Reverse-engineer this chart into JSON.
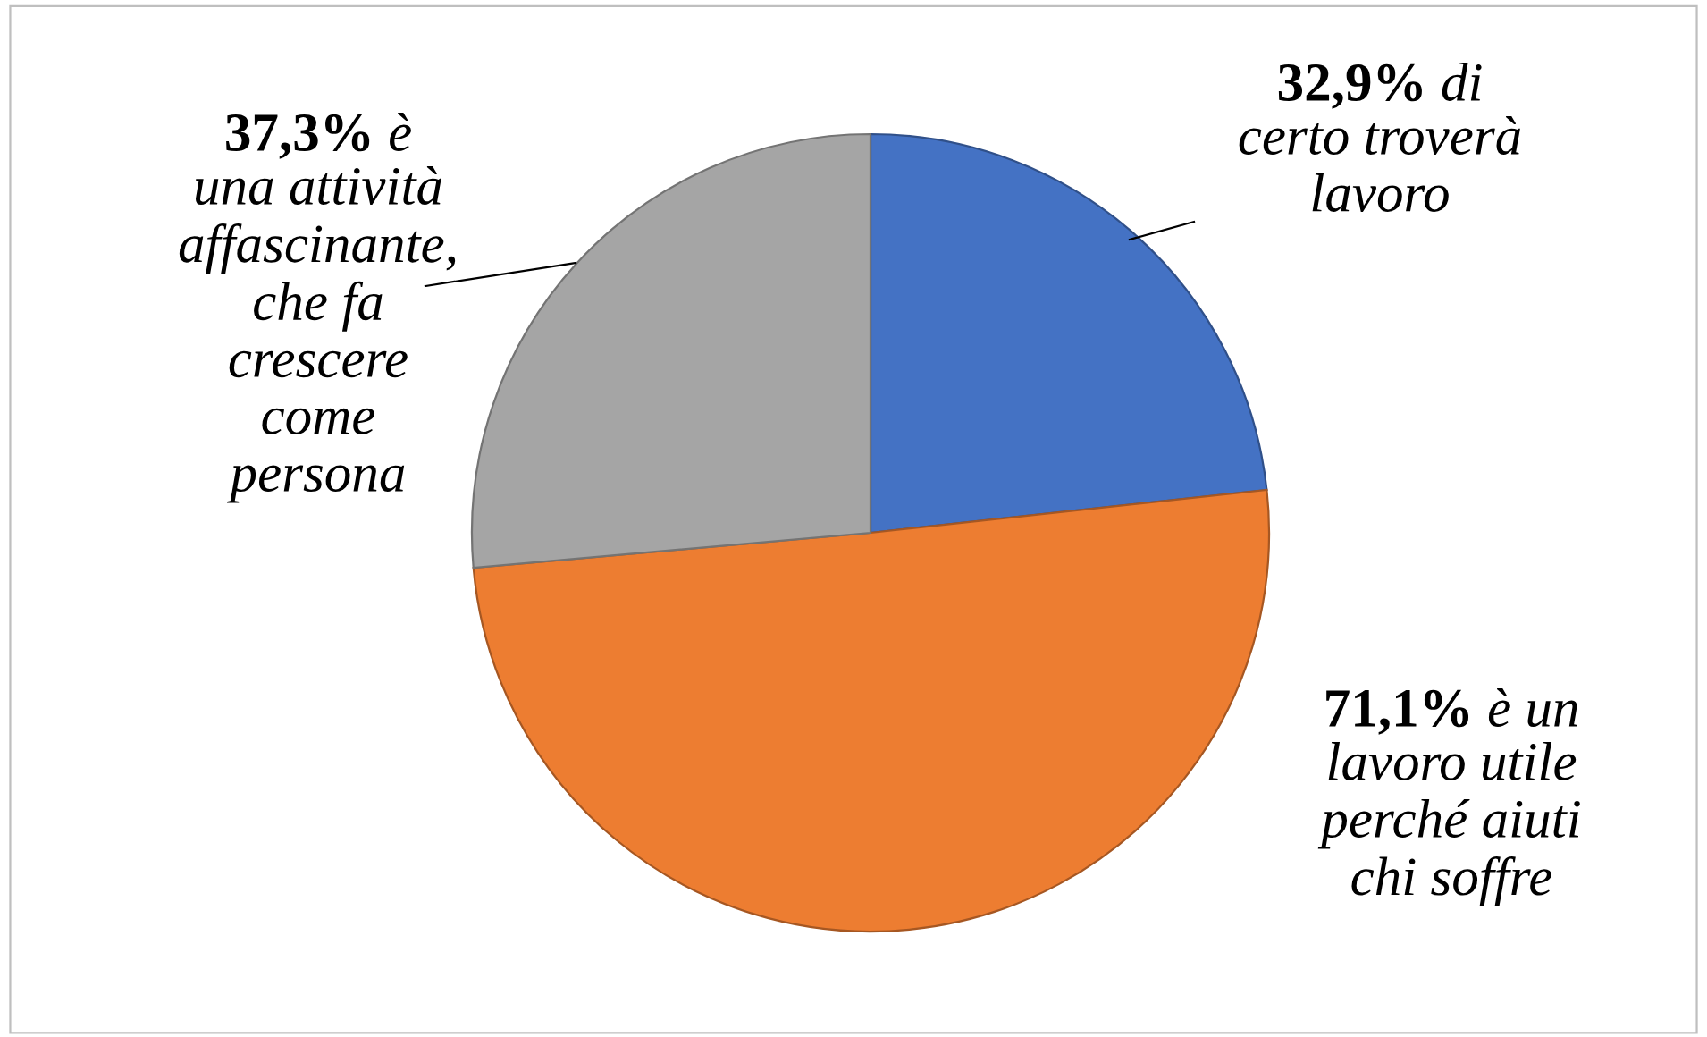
{
  "chart_data": {
    "type": "pie",
    "categories": [
      "di\ncerto troverà\nlavoro",
      "è un\nlavoro utile\nperché aiuti\nchi soffre",
      "è\nuna attività\naffascinante,\nche fa\ncrescere\ncome\npersona"
    ],
    "values": [
      32.9,
      71.1,
      37.3
    ],
    "value_labels": [
      "32,9%",
      "71,1%",
      "37,3%"
    ],
    "colors": [
      "#4472c4",
      "#ed7d31",
      "#a5a5a5"
    ],
    "legend": false
  }
}
